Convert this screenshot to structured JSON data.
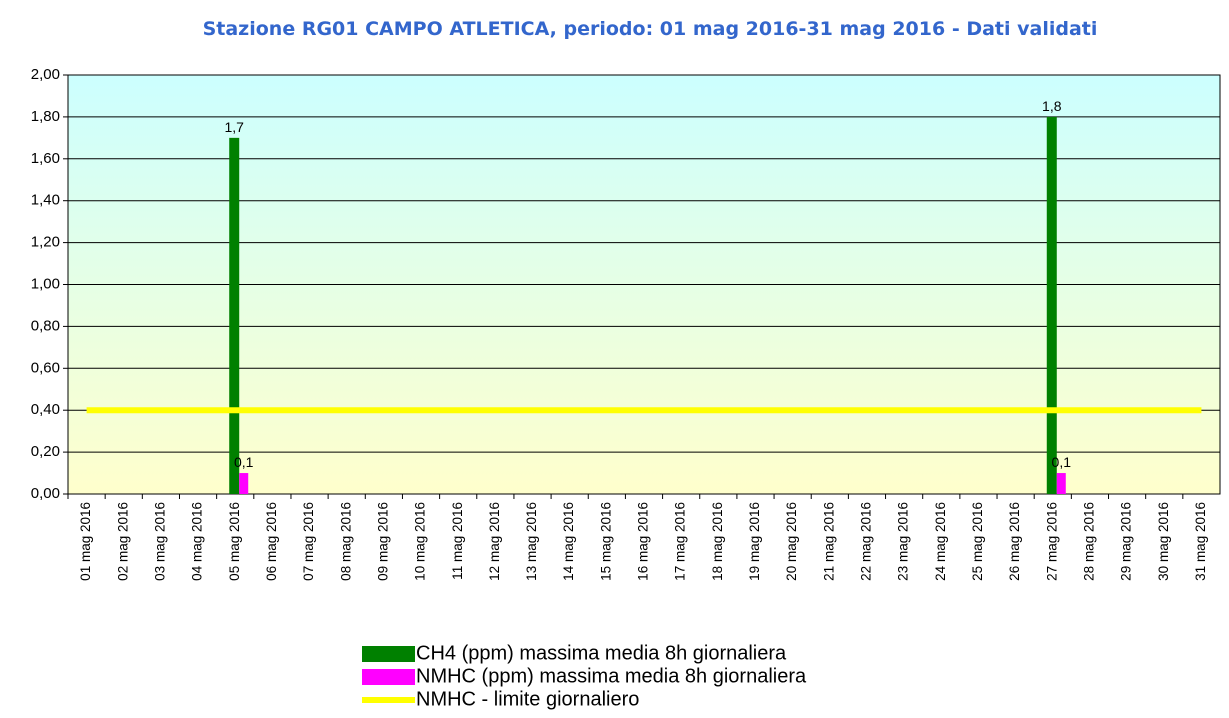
{
  "chart_data": {
    "type": "bar",
    "title": "Stazione RG01 CAMPO ATLETICA, periodo: 01 mag 2016-31 mag 2016 - Dati validati",
    "categories": [
      "01 mag 2016",
      "02 mag 2016",
      "03 mag 2016",
      "04 mag 2016",
      "05 mag 2016",
      "06 mag 2016",
      "07 mag 2016",
      "08 mag 2016",
      "09 mag 2016",
      "10 mag 2016",
      "11 mag 2016",
      "12 mag 2016",
      "13 mag 2016",
      "14 mag 2016",
      "15 mag 2016",
      "16 mag 2016",
      "17 mag 2016",
      "18 mag 2016",
      "19 mag 2016",
      "20 mag 2016",
      "21 mag 2016",
      "22 mag 2016",
      "23 mag 2016",
      "24 mag 2016",
      "25 mag 2016",
      "26 mag 2016",
      "27 mag 2016",
      "28 mag 2016",
      "29 mag 2016",
      "30 mag 2016",
      "31 mag 2016"
    ],
    "series": [
      {
        "name": "CH4 (ppm) massima media 8h giornaliera",
        "color": "#008000",
        "type": "bar",
        "values": [
          null,
          null,
          null,
          null,
          1.7,
          null,
          null,
          null,
          null,
          null,
          null,
          null,
          null,
          null,
          null,
          null,
          null,
          null,
          null,
          null,
          null,
          null,
          null,
          null,
          null,
          null,
          1.8,
          null,
          null,
          null,
          null
        ],
        "value_labels": [
          null,
          null,
          null,
          null,
          "1,7",
          null,
          null,
          null,
          null,
          null,
          null,
          null,
          null,
          null,
          null,
          null,
          null,
          null,
          null,
          null,
          null,
          null,
          null,
          null,
          null,
          null,
          "1,8",
          null,
          null,
          null,
          null
        ]
      },
      {
        "name": "NMHC (ppm) massima media 8h giornaliera",
        "color": "#ff00ff",
        "type": "bar",
        "values": [
          null,
          null,
          null,
          null,
          0.1,
          null,
          null,
          null,
          null,
          null,
          null,
          null,
          null,
          null,
          null,
          null,
          null,
          null,
          null,
          null,
          null,
          null,
          null,
          null,
          null,
          null,
          0.1,
          null,
          null,
          null,
          null
        ],
        "value_labels": [
          null,
          null,
          null,
          null,
          "0,1",
          null,
          null,
          null,
          null,
          null,
          null,
          null,
          null,
          null,
          null,
          null,
          null,
          null,
          null,
          null,
          null,
          null,
          null,
          null,
          null,
          null,
          "0,1",
          null,
          null,
          null,
          null
        ]
      },
      {
        "name": "NMHC - limite giornaliero",
        "color": "#ffff00",
        "type": "line",
        "values": [
          0.4,
          0.4,
          0.4,
          0.4,
          0.4,
          0.4,
          0.4,
          0.4,
          0.4,
          0.4,
          0.4,
          0.4,
          0.4,
          0.4,
          0.4,
          0.4,
          0.4,
          0.4,
          0.4,
          0.4,
          0.4,
          0.4,
          0.4,
          0.4,
          0.4,
          0.4,
          0.4,
          0.4,
          0.4,
          0.4,
          0.4
        ]
      }
    ],
    "ylim": [
      0,
      2
    ],
    "yticks": [
      {
        "value": 0,
        "label": "0,00"
      },
      {
        "value": 0.2,
        "label": "0,20"
      },
      {
        "value": 0.4,
        "label": "0,40"
      },
      {
        "value": 0.6,
        "label": "0,60"
      },
      {
        "value": 0.8,
        "label": "0,80"
      },
      {
        "value": 1,
        "label": "1,00"
      },
      {
        "value": 1.2,
        "label": "1,20"
      },
      {
        "value": 1.4,
        "label": "1,40"
      },
      {
        "value": 1.6,
        "label": "1,60"
      },
      {
        "value": 1.8,
        "label": "1,80"
      },
      {
        "value": 2,
        "label": "2,00"
      }
    ],
    "grid": true,
    "legend": "bottom"
  }
}
